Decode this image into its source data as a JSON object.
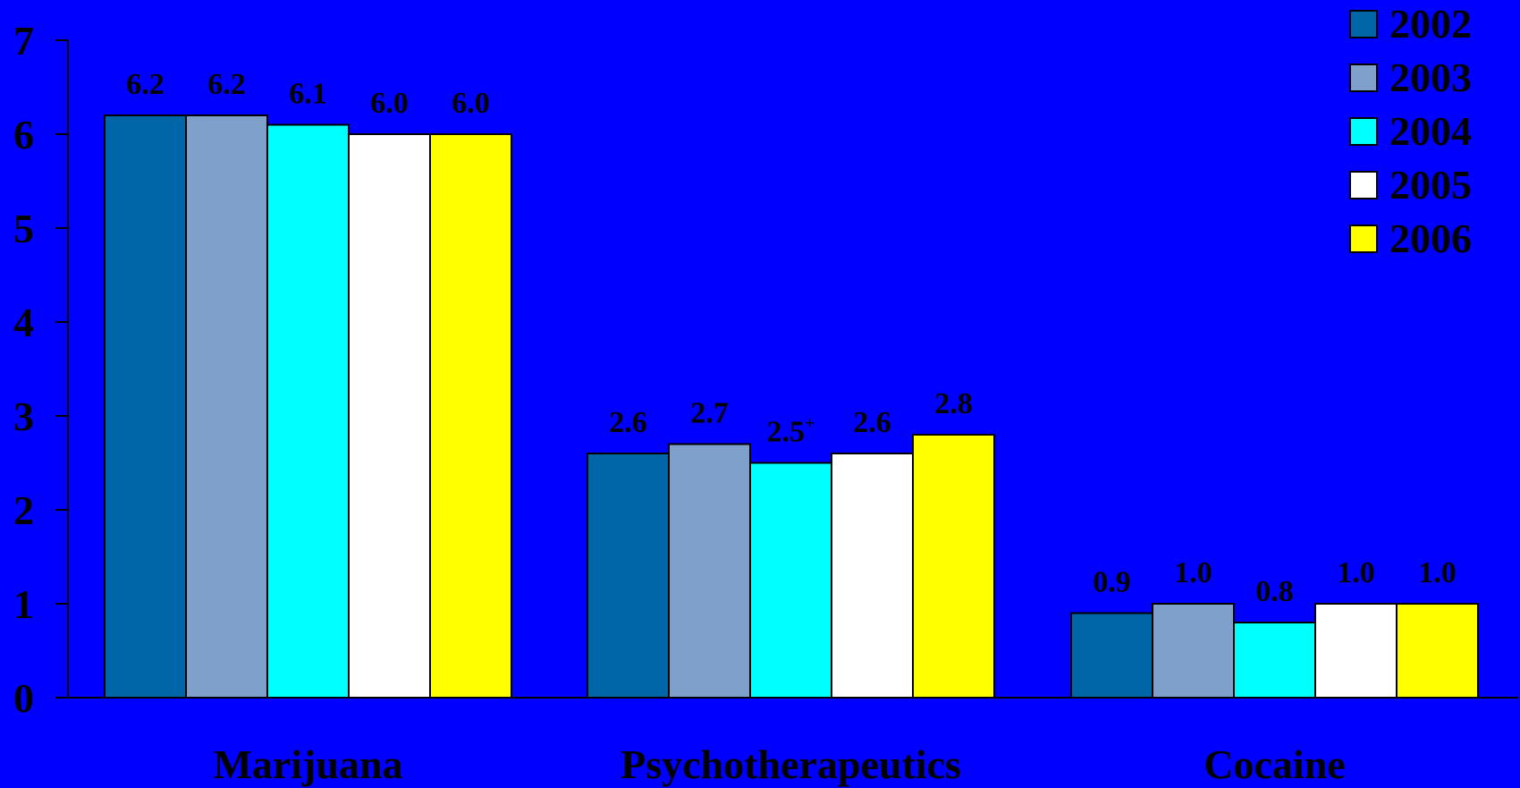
{
  "chart_data": {
    "type": "bar",
    "title": "",
    "xlabel": "",
    "ylabel": "",
    "ylim": [
      0,
      7
    ],
    "yticks": [
      0,
      1,
      2,
      3,
      4,
      5,
      6,
      7
    ],
    "grid": false,
    "legend_position": "top-right",
    "categories": [
      "Marijuana",
      "Psychotherapeutics",
      "Cocaine"
    ],
    "series": [
      {
        "name": "2002",
        "color": "#0066A8",
        "values": [
          6.2,
          2.6,
          0.9
        ],
        "labels": [
          "6.2",
          "2.6",
          "0.9"
        ]
      },
      {
        "name": "2003",
        "color": "#80A0CC",
        "values": [
          6.2,
          2.7,
          1.0
        ],
        "labels": [
          "6.2",
          "2.7",
          "1.0"
        ]
      },
      {
        "name": "2004",
        "color": "#00FFFF",
        "values": [
          6.1,
          2.5,
          0.8
        ],
        "labels": [
          "6.1",
          "2.5",
          "0.8"
        ],
        "marks": [
          "",
          "+",
          ""
        ]
      },
      {
        "name": "2005",
        "color": "#FFFFFF",
        "values": [
          6.0,
          2.6,
          1.0
        ],
        "labels": [
          "6.0",
          "2.6",
          "1.0"
        ]
      },
      {
        "name": "2006",
        "color": "#FFFF00",
        "values": [
          6.0,
          2.8,
          1.0
        ],
        "labels": [
          "6.0",
          "2.8",
          "1.0"
        ]
      }
    ]
  }
}
